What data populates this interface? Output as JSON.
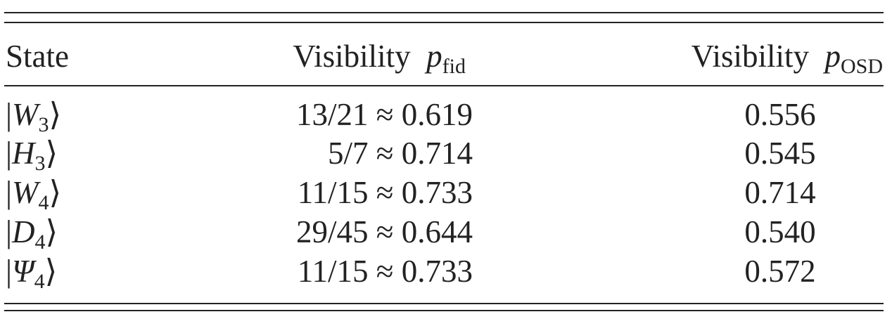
{
  "table": {
    "header": [
      {
        "text": "State"
      },
      {
        "text": "Visibility",
        "symbol": "p",
        "subscript": "fid"
      },
      {
        "text": "Visibility",
        "symbol": "p",
        "subscript": "OSD"
      }
    ],
    "rows": [
      {
        "state": {
          "left": "|",
          "symbol": "W",
          "subscript": "3",
          "right": "⟩"
        },
        "fid": "13/21 ≈ 0.619",
        "osd": "0.556"
      },
      {
        "state": {
          "left": "|",
          "symbol": "H",
          "subscript": "3",
          "right": "⟩"
        },
        "fid": "5/7 ≈ 0.714",
        "osd": "0.545"
      },
      {
        "state": {
          "left": "|",
          "symbol": "W",
          "subscript": "4",
          "right": "⟩"
        },
        "fid": "11/15 ≈ 0.733",
        "osd": "0.714"
      },
      {
        "state": {
          "left": "|",
          "symbol": "D",
          "subscript": "4",
          "right": "⟩"
        },
        "fid": "29/45 ≈ 0.644",
        "osd": "0.540"
      },
      {
        "state": {
          "left": "|",
          "symbol": "Ψ",
          "subscript": "4",
          "right": "⟩"
        },
        "fid": "11/15 ≈ 0.733",
        "osd": "0.572"
      }
    ]
  }
}
